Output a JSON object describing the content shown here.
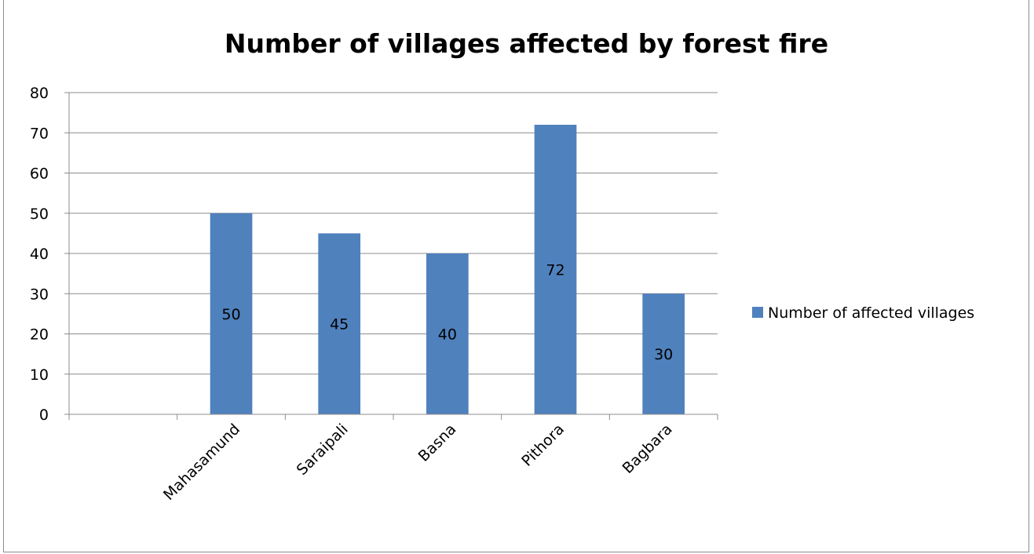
{
  "chart_data": {
    "type": "bar",
    "title": "Number of villages affected by forest fire",
    "categories": [
      "",
      "Mahasamund",
      "Saraipali",
      "Basna",
      "Pithora",
      "Bagbara"
    ],
    "series": [
      {
        "name": "Number of affected villages",
        "values": [
          null,
          50,
          45,
          40,
          72,
          30
        ],
        "data_labels": [
          "",
          "50",
          "45",
          "40",
          "72",
          "30"
        ]
      }
    ],
    "ylim": [
      0,
      80
    ],
    "yticks": [
      0,
      10,
      20,
      30,
      40,
      50,
      60,
      70,
      80
    ],
    "grid": true,
    "legend_position": "right",
    "bar_color": "#4f81bd"
  }
}
